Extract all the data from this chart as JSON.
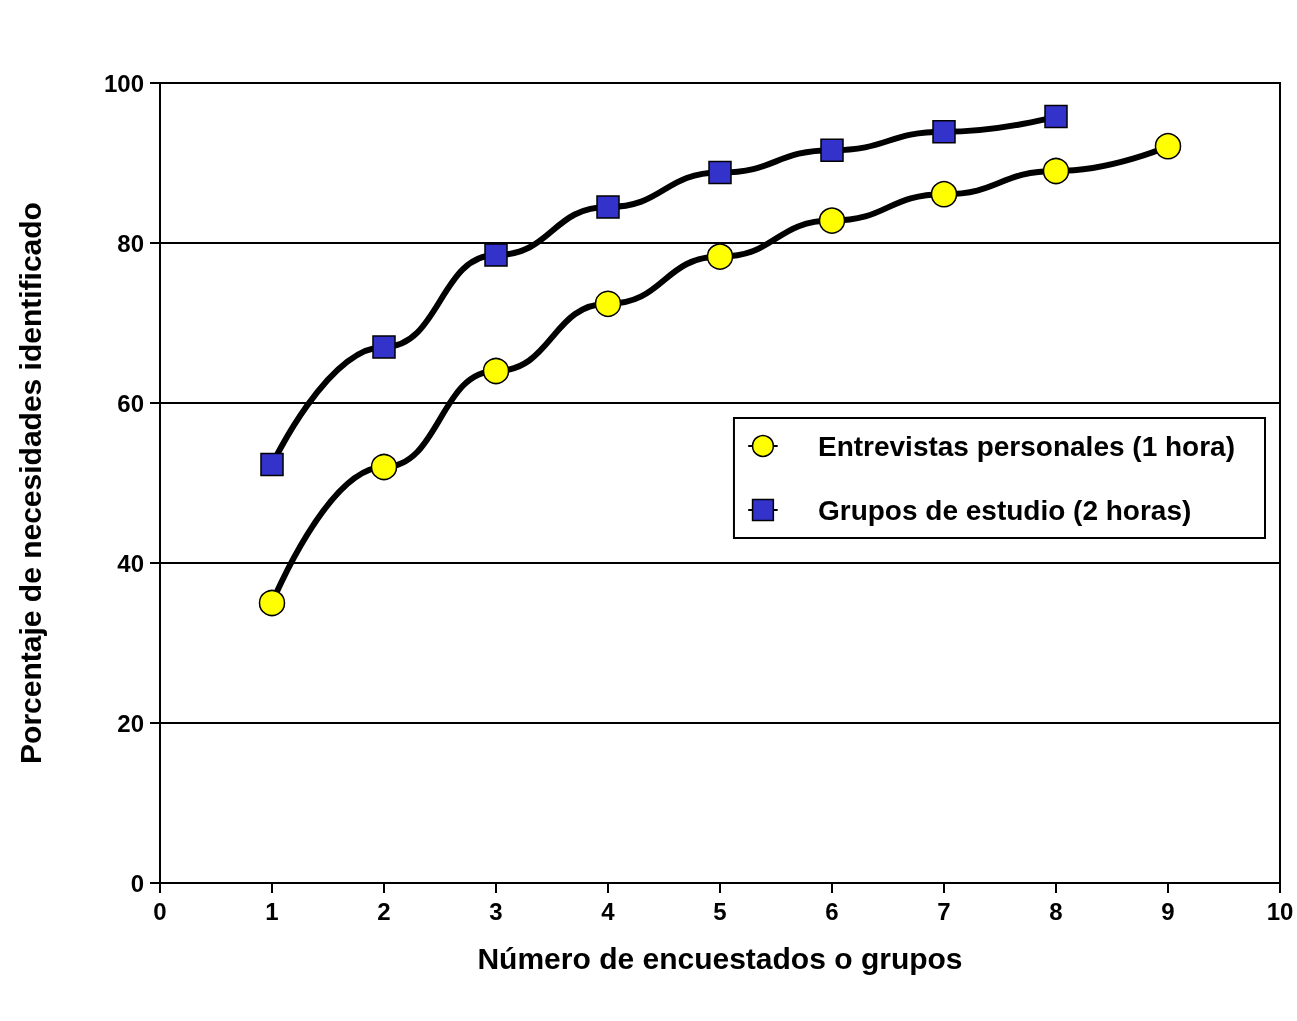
{
  "chart_data": {
    "type": "line",
    "xlabel": "Número de encuestados o grupos",
    "ylabel": "Porcentaje de necesidades identificado",
    "xlim": [
      0,
      10
    ],
    "xticks": [
      0,
      1,
      2,
      3,
      4,
      5,
      6,
      7,
      8,
      9,
      10
    ],
    "ylim": [
      0,
      100
    ],
    "yticks": [
      0,
      20,
      40,
      60,
      80,
      100
    ],
    "grid": "y",
    "legend": "right",
    "series": [
      {
        "name": "Entrevistas personales (1 hora)",
        "color": "#ffff00",
        "marker": "circle",
        "x": [
          1,
          2,
          3,
          4,
          5,
          6,
          7,
          8,
          9
        ],
        "values": [
          35,
          52,
          64,
          72.4,
          78.3,
          82.8,
          86.1,
          89,
          92.1
        ]
      },
      {
        "name": "Grupos de estudio (2 horas)",
        "color": "#3333cc",
        "marker": "square",
        "x": [
          1,
          2,
          3,
          4,
          5,
          6,
          7,
          8
        ],
        "values": [
          52.3,
          67,
          78.5,
          84.5,
          88.8,
          91.6,
          93.9,
          95.8
        ]
      }
    ]
  }
}
